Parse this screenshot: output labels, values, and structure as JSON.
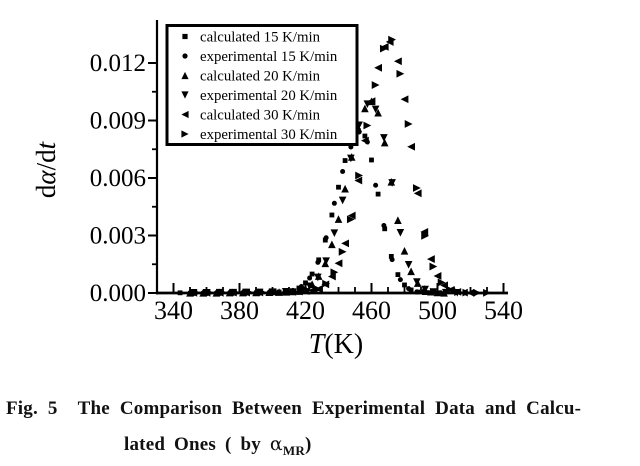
{
  "figure": {
    "fig_label": "Fig. 5",
    "caption_line1": "The Comparison Between Experimental Data and Calcu-",
    "caption_line2_prefix": "lated Ones ( by ",
    "caption_symbol": "α",
    "caption_symbol_subscript": "MR",
    "caption_line2_suffix": ")"
  },
  "chart_data": {
    "type": "scatter",
    "title": "",
    "xlabel": "T(K)",
    "ylabel": "dα/dt",
    "xlim": [
      330,
      542
    ],
    "ylim": [
      0,
      0.0135
    ],
    "x_ticks": [
      340,
      380,
      420,
      460,
      500,
      540
    ],
    "x_minor_step": 10,
    "y_ticks": [
      0.0,
      0.003,
      0.006,
      0.009,
      0.012
    ],
    "y_tick_labels": [
      "0.000",
      "0.003",
      "0.006",
      "0.009",
      "0.012"
    ],
    "y_minor_step": 0.0015,
    "grid": false,
    "legend_position": "top-left",
    "marker_color": "#000000",
    "series": [
      {
        "name": "calculated 15 K/min",
        "marker": "square",
        "peak_T": 453,
        "peak_value": 0.0085,
        "points": [
          [
            344,
            1e-05
          ],
          [
            352,
            1e-05
          ],
          [
            360,
            1e-05
          ],
          [
            368,
            2e-05
          ],
          [
            376,
            2e-05
          ],
          [
            384,
            3e-05
          ],
          [
            392,
            3e-05
          ],
          [
            400,
            4e-05
          ],
          [
            404,
            5e-05
          ],
          [
            408,
            7e-05
          ],
          [
            412,
            0.00012
          ],
          [
            416,
            0.00026
          ],
          [
            420,
            0.00053
          ],
          [
            424,
            0.00099
          ],
          [
            428,
            0.00173
          ],
          [
            432,
            0.00276
          ],
          [
            436,
            0.00407
          ],
          [
            440,
            0.00552
          ],
          [
            444,
            0.00691
          ],
          [
            448,
            0.00797
          ],
          [
            452,
            0.00848
          ],
          [
            456,
            0.00819
          ],
          [
            460,
            0.00694
          ],
          [
            464,
            0.00516
          ],
          [
            468,
            0.00335
          ],
          [
            472,
            0.00191
          ],
          [
            476,
            0.00096
          ],
          [
            480,
            0.00042
          ],
          [
            484,
            0.00016
          ],
          [
            488,
            5e-05
          ],
          [
            492,
            2e-05
          ],
          [
            496,
            1e-05
          ],
          [
            500,
            1e-05
          ]
        ]
      },
      {
        "name": "experimental 15 K/min",
        "marker": "circle",
        "peak_T": 452.5,
        "peak_value": 0.0084,
        "points": [
          [
            350,
            1e-05
          ],
          [
            358,
            1e-05
          ],
          [
            366,
            1e-05
          ],
          [
            374,
            2e-05
          ],
          [
            382,
            2e-05
          ],
          [
            390,
            3e-05
          ],
          [
            398,
            4e-05
          ],
          [
            407.5,
            6e-05
          ],
          [
            412.5,
            0.00013
          ],
          [
            417.5,
            0.00034
          ],
          [
            422.5,
            0.00078
          ],
          [
            427.5,
            0.0016
          ],
          [
            432.5,
            0.00288
          ],
          [
            437.5,
            0.00468
          ],
          [
            442.5,
            0.00634
          ],
          [
            447.5,
            0.00762
          ],
          [
            452.5,
            0.0084
          ],
          [
            457.5,
            0.00788
          ],
          [
            462.5,
            0.00562
          ],
          [
            467.5,
            0.00352
          ],
          [
            472.5,
            0.00174
          ],
          [
            477.5,
            0.0007
          ],
          [
            482.5,
            0.00023
          ],
          [
            487.5,
            6e-05
          ],
          [
            494,
            2e-05
          ],
          [
            502,
            1e-05
          ]
        ]
      },
      {
        "name": "calculated 20 K/min",
        "marker": "triangle-up",
        "peak_T": 460,
        "peak_value": 0.01,
        "points": [
          [
            350,
            1e-05
          ],
          [
            358,
            1e-05
          ],
          [
            366,
            1e-05
          ],
          [
            374,
            2e-05
          ],
          [
            382,
            2e-05
          ],
          [
            390,
            3e-05
          ],
          [
            398,
            4e-05
          ],
          [
            404,
            5e-05
          ],
          [
            408,
            6e-05
          ],
          [
            412,
            8e-05
          ],
          [
            416,
            0.0001
          ],
          [
            420,
            0.00022
          ],
          [
            424,
            0.00046
          ],
          [
            428,
            0.00088
          ],
          [
            432,
            0.00155
          ],
          [
            436,
            0.00254
          ],
          [
            440,
            0.00386
          ],
          [
            444,
            0.00544
          ],
          [
            448,
            0.0071
          ],
          [
            452,
            0.00859
          ],
          [
            456,
            0.00963
          ],
          [
            460,
            0.01
          ],
          [
            464,
            0.00941
          ],
          [
            468,
            0.00785
          ],
          [
            472,
            0.0058
          ],
          [
            476,
            0.0038
          ],
          [
            480,
            0.0022
          ],
          [
            484,
            0.00113
          ],
          [
            488,
            0.00052
          ],
          [
            492,
            0.00021
          ],
          [
            496,
            7e-05
          ],
          [
            500,
            3e-05
          ],
          [
            504,
            1e-05
          ]
        ]
      },
      {
        "name": "experimental 20 K/min",
        "marker": "triangle-down",
        "peak_T": 457.5,
        "peak_value": 0.00985,
        "points": [
          [
            352,
            1e-05
          ],
          [
            360,
            1e-05
          ],
          [
            368,
            2e-05
          ],
          [
            376,
            2e-05
          ],
          [
            384,
            3e-05
          ],
          [
            392,
            3e-05
          ],
          [
            400,
            4e-05
          ],
          [
            408,
            6e-05
          ],
          [
            417.5,
            0.00014
          ],
          [
            422.5,
            0.00035
          ],
          [
            427.5,
            0.00081
          ],
          [
            432.5,
            0.00166
          ],
          [
            437.5,
            0.00312
          ],
          [
            442.5,
            0.00483
          ],
          [
            447.5,
            0.00702
          ],
          [
            452.5,
            0.00875
          ],
          [
            457.5,
            0.00985
          ],
          [
            462.5,
            0.00958
          ],
          [
            467.5,
            0.00809
          ],
          [
            472.5,
            0.00574
          ],
          [
            477.5,
            0.00314
          ],
          [
            482.5,
            0.00147
          ],
          [
            487.5,
            0.00057
          ],
          [
            492.5,
            0.00018
          ],
          [
            497.5,
            5e-05
          ],
          [
            505,
            2e-05
          ],
          [
            512,
            1e-05
          ]
        ]
      },
      {
        "name": "calculated 30 K/min",
        "marker": "triangle-left",
        "peak_T": 471,
        "peak_value": 0.0131,
        "points": [
          [
            352,
            1e-05
          ],
          [
            360,
            1e-05
          ],
          [
            368,
            1e-05
          ],
          [
            376,
            2e-05
          ],
          [
            384,
            2e-05
          ],
          [
            392,
            3e-05
          ],
          [
            400,
            4e-05
          ],
          [
            408,
            5e-05
          ],
          [
            412,
            6e-05
          ],
          [
            416,
            8e-05
          ],
          [
            420,
            0.0001
          ],
          [
            424,
            0.00014
          ],
          [
            428,
            0.00021
          ],
          [
            432,
            0.00045
          ],
          [
            436,
            0.00086
          ],
          [
            440,
            0.00155
          ],
          [
            444,
            0.00259
          ],
          [
            448,
            0.00404
          ],
          [
            452,
            0.00587
          ],
          [
            456,
            0.00795
          ],
          [
            460,
            0.01001
          ],
          [
            464,
            0.01175
          ],
          [
            468,
            0.01284
          ],
          [
            471,
            0.0131
          ],
          [
            476,
            0.01209
          ],
          [
            480,
            0.01011
          ],
          [
            484,
            0.00763
          ],
          [
            488,
            0.0052
          ],
          [
            492,
            0.00319
          ],
          [
            496,
            0.00177
          ],
          [
            500,
            0.00089
          ],
          [
            504,
            0.0004
          ],
          [
            508,
            0.00016
          ],
          [
            512,
            6e-05
          ],
          [
            516,
            2e-05
          ],
          [
            520,
            1e-05
          ]
        ]
      },
      {
        "name": "experimental 30 K/min",
        "marker": "triangle-right",
        "peak_T": 472.5,
        "peak_value": 0.0132,
        "points": [
          [
            354,
            1e-05
          ],
          [
            362,
            1e-05
          ],
          [
            370,
            2e-05
          ],
          [
            378,
            2e-05
          ],
          [
            386,
            3e-05
          ],
          [
            394,
            3e-05
          ],
          [
            402,
            4e-05
          ],
          [
            410,
            6e-05
          ],
          [
            418,
            0.0001
          ],
          [
            427.5,
            0.0002
          ],
          [
            432.5,
            0.00049
          ],
          [
            437.5,
            0.00108
          ],
          [
            442.5,
            0.00215
          ],
          [
            447.5,
            0.00384
          ],
          [
            452.5,
            0.00613
          ],
          [
            457.5,
            0.00874
          ],
          [
            462.5,
            0.01085
          ],
          [
            467.5,
            0.01275
          ],
          [
            472.5,
            0.01322
          ],
          [
            477.5,
            0.01144
          ],
          [
            482.5,
            0.00882
          ],
          [
            487.5,
            0.00548
          ],
          [
            492.5,
            0.00298
          ],
          [
            497.5,
            0.00138
          ],
          [
            502.5,
            0.00055
          ],
          [
            507.5,
            0.00018
          ],
          [
            512.5,
            5e-05
          ],
          [
            517.5,
            2e-05
          ],
          [
            524,
            1e-05
          ],
          [
            530,
            1e-05
          ]
        ]
      }
    ]
  }
}
